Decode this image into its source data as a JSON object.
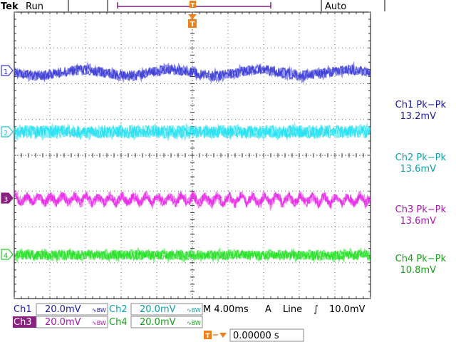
{
  "header": {
    "brand": "Tek",
    "state": "Run",
    "trigger_marker": "T",
    "mode": "Auto"
  },
  "channels": [
    {
      "id": "1",
      "color": "#3a3ad6",
      "label": "Ch1 Pk−Pk",
      "value": "13.2mV"
    },
    {
      "id": "2",
      "color": "#22d8e8",
      "label": "Ch2 Pk−Pk",
      "value": "13.6mV"
    },
    {
      "id": "3",
      "color": "#e020e0",
      "label": "Ch3 Pk−Pk",
      "value": "13.6mV"
    },
    {
      "id": "4",
      "color": "#22dd22",
      "label": "Ch4 Pk−Pk",
      "value": "10.8mV"
    }
  ],
  "footer": {
    "ch1": {
      "name": "Ch1",
      "scale": "20.0mV"
    },
    "ch2": {
      "name": "Ch2",
      "scale": "20.0mV"
    },
    "ch3": {
      "name": "Ch3",
      "scale": "20.0mV"
    },
    "ch4": {
      "name": "Ch4",
      "scale": "20.0mV"
    },
    "bw_symbol": "∿BW",
    "timebase": "M 4.00ms",
    "trigger_source": "A",
    "trigger_type": "Line",
    "trigger_slope": "∫",
    "trigger_level": "10.0mV",
    "trigger_offset": "0.00000 s"
  }
}
